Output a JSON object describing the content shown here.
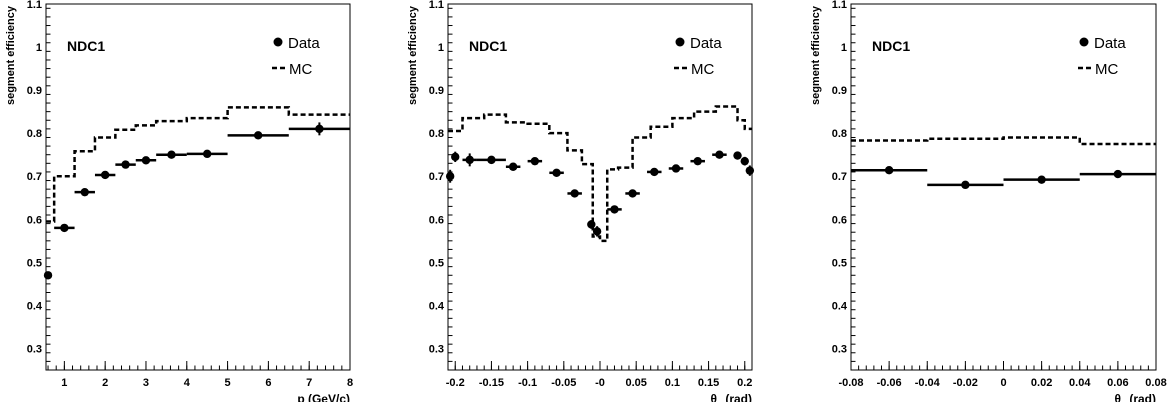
{
  "colors": {
    "data": "#000000",
    "mc": "#000000",
    "background": "#ffffff"
  },
  "chart_data": [
    {
      "type": "scatter",
      "panel_label": "NDC1",
      "xlabel": "p (GeV/c)",
      "xlabel_main": "p (GeV/c)",
      "xlabel_sub": "",
      "xlabel_tail": "",
      "ylabel": "segment efficiency",
      "xlim": [
        0.55,
        8
      ],
      "ylim": [
        0.25,
        1.1
      ],
      "xticks": [
        1,
        2,
        3,
        4,
        5,
        6,
        7,
        8
      ],
      "xtick_labels": [
        "1",
        "2",
        "3",
        "4",
        "5",
        "6",
        "7",
        "8"
      ],
      "yticks": [
        0.3,
        0.4,
        0.5,
        0.6,
        0.7,
        0.8,
        0.9,
        1,
        1.1
      ],
      "ytick_labels": [
        "0.3",
        "0.4",
        "0.5",
        "0.6",
        "0.7",
        "0.8",
        "0.9",
        "1",
        "1.1"
      ],
      "legend": {
        "data_label": "Data",
        "mc_label": "MC",
        "position": "top-right"
      },
      "series": [
        {
          "name": "Data",
          "x": [
            0.6,
            1.0,
            1.5,
            2.0,
            2.5,
            3.0,
            3.625,
            4.5,
            5.75,
            7.25
          ],
          "xerr": [
            0.05,
            0.25,
            0.25,
            0.25,
            0.25,
            0.25,
            0.375,
            0.5,
            0.75,
            0.75
          ],
          "y": [
            0.47,
            0.58,
            0.663,
            0.703,
            0.727,
            0.737,
            0.75,
            0.752,
            0.795,
            0.81
          ],
          "yerr": [
            0.008,
            0.005,
            0.005,
            0.005,
            0.005,
            0.005,
            0.005,
            0.005,
            0.006,
            0.015
          ]
        },
        {
          "name": "MC",
          "style": "step-dashed",
          "edges": [
            0.55,
            0.75,
            1.25,
            1.75,
            2.25,
            2.75,
            3.25,
            4.0,
            5.0,
            6.5,
            8.0
          ],
          "values": [
            0.595,
            0.7,
            0.758,
            0.79,
            0.808,
            0.818,
            0.828,
            0.835,
            0.86,
            0.843
          ]
        }
      ]
    },
    {
      "type": "scatter",
      "panel_label": "NDC1",
      "xlabel": "θx (rad)",
      "xlabel_main": "θ",
      "xlabel_sub": "x",
      "xlabel_tail": " (rad)",
      "ylabel": "segment efficiency",
      "xlim": [
        -0.21,
        0.21
      ],
      "ylim": [
        0.25,
        1.1
      ],
      "xticks": [
        -0.2,
        -0.15,
        -0.1,
        -0.05,
        0,
        0.05,
        0.1,
        0.15,
        0.2
      ],
      "xtick_labels": [
        "-0.2",
        "-0.15",
        "-0.1",
        "-0.05",
        "-0",
        "0.05",
        "0.1",
        "0.15",
        "0.2"
      ],
      "yticks": [
        0.3,
        0.4,
        0.5,
        0.6,
        0.7,
        0.8,
        0.9,
        1,
        1.1
      ],
      "ytick_labels": [
        "0.3",
        "0.4",
        "0.5",
        "0.6",
        "0.7",
        "0.8",
        "0.9",
        "1",
        "1.1"
      ],
      "legend": {
        "data_label": "Data",
        "mc_label": "MC",
        "position": "top-right"
      },
      "series": [
        {
          "name": "Data",
          "x": [
            -0.207,
            -0.2,
            -0.18,
            -0.15,
            -0.12,
            -0.09,
            -0.06,
            -0.035,
            -0.012,
            -0.004,
            0.02,
            0.045,
            0.075,
            0.105,
            0.135,
            0.165,
            0.19,
            0.2,
            0.207
          ],
          "xerr": [
            0.003,
            0.005,
            0.01,
            0.02,
            0.01,
            0.01,
            0.01,
            0.01,
            0.004,
            0.004,
            0.01,
            0.01,
            0.01,
            0.01,
            0.01,
            0.01,
            0.005,
            0.003,
            0.003
          ],
          "y": [
            0.7,
            0.745,
            0.738,
            0.738,
            0.722,
            0.735,
            0.708,
            0.66,
            0.588,
            0.572,
            0.623,
            0.66,
            0.71,
            0.718,
            0.735,
            0.75,
            0.748,
            0.735,
            0.713
          ],
          "yerr": [
            0.015,
            0.012,
            0.015,
            0.008,
            0.006,
            0.006,
            0.006,
            0.006,
            0.01,
            0.012,
            0.006,
            0.006,
            0.006,
            0.006,
            0.006,
            0.006,
            0.008,
            0.01,
            0.012
          ]
        },
        {
          "name": "MC",
          "style": "step-dashed",
          "edges": [
            -0.21,
            -0.19,
            -0.16,
            -0.13,
            -0.1,
            -0.07,
            -0.045,
            -0.025,
            -0.01,
            0.0,
            0.01,
            0.025,
            0.045,
            0.07,
            0.1,
            0.13,
            0.16,
            0.19,
            0.2,
            0.21
          ],
          "values": [
            0.805,
            0.835,
            0.843,
            0.825,
            0.822,
            0.8,
            0.76,
            0.728,
            0.56,
            0.55,
            0.716,
            0.72,
            0.79,
            0.815,
            0.835,
            0.85,
            0.862,
            0.83,
            0.81
          ]
        }
      ]
    },
    {
      "type": "scatter",
      "panel_label": "NDC1",
      "xlabel": "θy (rad)",
      "xlabel_main": "θ",
      "xlabel_sub": "y",
      "xlabel_tail": " (rad)",
      "ylabel": "segment efficiency",
      "xlim": [
        -0.08,
        0.08
      ],
      "ylim": [
        0.25,
        1.1
      ],
      "xticks": [
        -0.08,
        -0.06,
        -0.04,
        -0.02,
        0,
        0.02,
        0.04,
        0.06,
        0.08
      ],
      "xtick_labels": [
        "-0.08",
        "-0.06",
        "-0.04",
        "-0.02",
        "0",
        "0.02",
        "0.04",
        "0.06",
        "0.08"
      ],
      "yticks": [
        0.3,
        0.4,
        0.5,
        0.6,
        0.7,
        0.8,
        0.9,
        1,
        1.1
      ],
      "ytick_labels": [
        "0.3",
        "0.4",
        "0.5",
        "0.6",
        "0.7",
        "0.8",
        "0.9",
        "1",
        "1.1"
      ],
      "legend": {
        "data_label": "Data",
        "mc_label": "MC",
        "position": "top-right"
      },
      "series": [
        {
          "name": "Data",
          "x": [
            -0.06,
            -0.02,
            0.02,
            0.06
          ],
          "xerr": [
            0.02,
            0.02,
            0.02,
            0.02
          ],
          "y": [
            0.714,
            0.68,
            0.692,
            0.705
          ],
          "yerr": [
            0.004,
            0.004,
            0.004,
            0.004
          ]
        },
        {
          "name": "MC",
          "style": "step-dashed",
          "edges": [
            -0.08,
            -0.04,
            0.0,
            0.04,
            0.08
          ],
          "values": [
            0.783,
            0.787,
            0.79,
            0.775
          ]
        }
      ]
    }
  ]
}
